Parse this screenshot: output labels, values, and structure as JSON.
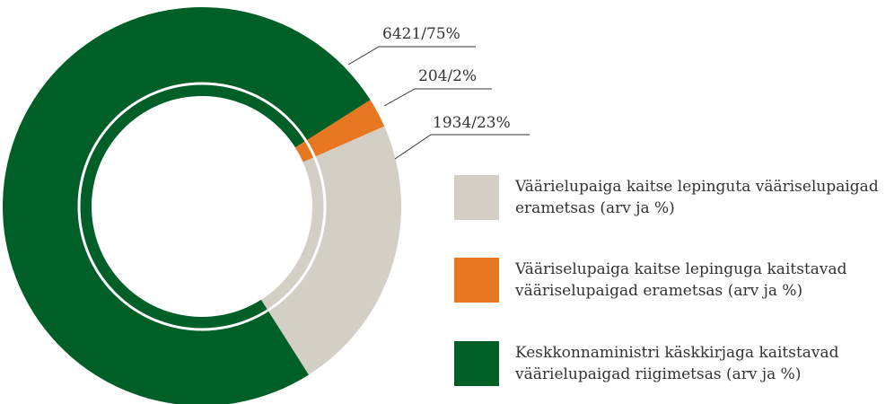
{
  "chart_data": {
    "type": "donut",
    "categories": [
      "Väärielupaiga kaitse lepinguta vääriselupaigad erametsas (arv ja %)",
      "Vääriselupaiga kaitse lepinguga kaitstavad vääriselupaigad erametsas (arv ja %)",
      "Keskkonnaministri käskkirjaga kaitstavad väärielupaigad riigimetsas (arv ja %)"
    ],
    "values": [
      1934,
      204,
      6421
    ],
    "value_labels": [
      "1934/23%",
      "204/2%",
      "6421/75%"
    ],
    "colors": [
      "#d3cfc5",
      "#e87722",
      "#005e27"
    ]
  }
}
